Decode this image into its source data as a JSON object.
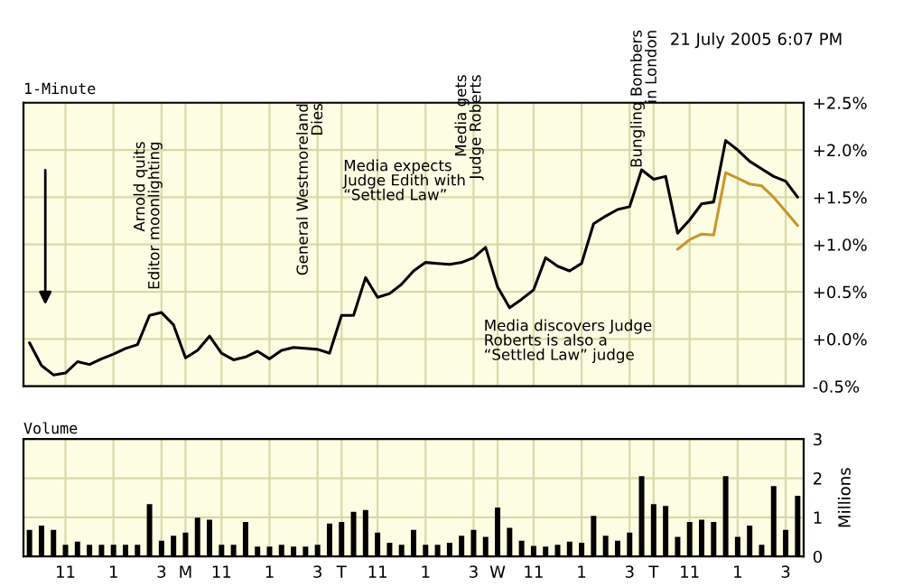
{
  "chart_data": [
    {
      "type": "line",
      "title": "1-Minute",
      "subtitle": "21 July 2005 6:07 PM",
      "categories": [
        null,
        null,
        null,
        null,
        null,
        null,
        null,
        null,
        null,
        null,
        null,
        null,
        null,
        null,
        null,
        null,
        null,
        null,
        null,
        null,
        null,
        null,
        null,
        null,
        null,
        null,
        null,
        null,
        null,
        null,
        null,
        null,
        null,
        null,
        null,
        null,
        null,
        null,
        null,
        null,
        null,
        null,
        null,
        null,
        null,
        null,
        null,
        null,
        null,
        null,
        null,
        null,
        null,
        null,
        null,
        null,
        null,
        null,
        null,
        null,
        null,
        null,
        null,
        null,
        null
      ],
      "ylim": [
        -0.5,
        2.5
      ],
      "yticks": [
        {
          "value": 2.5,
          "label": "+2.5%"
        },
        {
          "value": 2.0,
          "label": "+2.0%"
        },
        {
          "value": 1.5,
          "label": "+1.5%"
        },
        {
          "value": 1.0,
          "label": "+1.0%"
        },
        {
          "value": 0.5,
          "label": "+0.5%"
        },
        {
          "value": 0.0,
          "label": "+0.0%"
        },
        {
          "value": -0.5,
          "label": "-0.5%"
        }
      ],
      "tick_labels": "y",
      "grid": true,
      "marker": "none",
      "line_style": "solid",
      "series": [
        {
          "color": "#c8962e",
          "values": [
            null,
            null,
            null,
            null,
            null,
            null,
            null,
            null,
            null,
            null,
            null,
            null,
            null,
            null,
            null,
            null,
            null,
            null,
            null,
            null,
            null,
            null,
            null,
            null,
            null,
            null,
            null,
            null,
            null,
            null,
            null,
            null,
            null,
            null,
            null,
            null,
            null,
            null,
            null,
            null,
            null,
            null,
            null,
            null,
            null,
            null,
            null,
            null,
            null,
            null,
            null,
            null,
            null,
            null,
            0.95,
            1.05,
            1.11,
            1.1,
            1.76,
            1.7,
            1.64,
            1.62,
            1.5,
            1.35,
            1.2
          ]
        },
        {
          "color": "#000000",
          "values": [
            -0.04,
            -0.28,
            -0.38,
            -0.36,
            -0.24,
            -0.27,
            -0.21,
            -0.16,
            -0.1,
            -0.06,
            0.25,
            0.28,
            0.15,
            -0.2,
            -0.12,
            0.03,
            -0.15,
            -0.22,
            -0.19,
            -0.13,
            -0.21,
            -0.12,
            -0.09,
            -0.1,
            -0.11,
            -0.15,
            0.25,
            0.25,
            0.65,
            0.44,
            0.48,
            0.58,
            0.72,
            0.81,
            0.8,
            0.79,
            0.81,
            0.86,
            0.97,
            0.55,
            0.33,
            0.42,
            0.52,
            0.86,
            0.77,
            0.72,
            0.8,
            1.22,
            1.3,
            1.37,
            1.4,
            1.79,
            1.69,
            1.72,
            1.12,
            1.26,
            1.43,
            1.45,
            2.1,
            2.0,
            1.88,
            1.8,
            1.72,
            1.67,
            1.5
          ]
        }
      ],
      "annotations": [
        "Arnold quits\nEditor moonlighting",
        "General Westmoreland\nDies",
        "Media expects\nJudge Edith with\n“Settled Law”",
        "Media gets\nJudge Roberts",
        "Media discovers Judge\nRoberts is also a\n“Settled Law” judge",
        "Bungling Bombers\nin London"
      ]
    },
    {
      "type": "bar",
      "title": "Volume",
      "ylabel": "Millions",
      "categories": [
        null,
        null,
        null,
        "11",
        null,
        null,
        null,
        "1",
        null,
        null,
        null,
        "3",
        null,
        "M",
        null,
        null,
        "11",
        null,
        null,
        null,
        "1",
        null,
        null,
        null,
        "3",
        null,
        "T",
        null,
        null,
        "11",
        null,
        null,
        null,
        "1",
        null,
        null,
        null,
        "3",
        null,
        "W",
        null,
        null,
        "11",
        null,
        null,
        null,
        "1",
        null,
        null,
        null,
        "3",
        null,
        "T",
        null,
        null,
        "11",
        null,
        null,
        null,
        "1",
        null,
        null,
        null,
        "3",
        null
      ],
      "ylim": [
        0,
        3
      ],
      "yticks": [
        0,
        1,
        2,
        3
      ],
      "grid": true,
      "series": [
        {
          "color": "#000000",
          "values": [
            0.68,
            0.79,
            0.68,
            0.3,
            0.38,
            0.3,
            0.3,
            0.3,
            0.3,
            0.3,
            1.34,
            0.4,
            0.53,
            0.61,
            0.99,
            0.94,
            0.3,
            0.3,
            0.88,
            0.25,
            0.25,
            0.3,
            0.25,
            0.25,
            0.3,
            0.84,
            0.88,
            1.14,
            1.19,
            0.61,
            0.35,
            0.3,
            0.68,
            0.3,
            0.3,
            0.35,
            0.53,
            0.68,
            0.5,
            1.25,
            0.73,
            0.4,
            0.27,
            0.25,
            0.3,
            0.38,
            0.35,
            1.04,
            0.53,
            0.4,
            0.61,
            2.05,
            1.34,
            1.29,
            0.5,
            0.88,
            0.94,
            0.88,
            2.05,
            0.5,
            0.79,
            0.3,
            1.8,
            0.68,
            1.55
          ]
        }
      ]
    }
  ]
}
